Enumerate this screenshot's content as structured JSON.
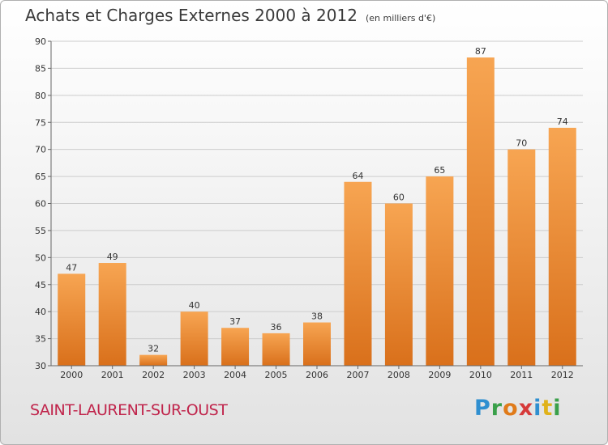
{
  "header": {
    "title": "Achats et Charges Externes 2000 à 2012",
    "unit": "(en milliers d'€)"
  },
  "footer": {
    "commune": "SAINT-LAURENT-SUR-OUST",
    "logo_text": "Proxiti",
    "logo_letters": [
      {
        "ch": "P",
        "color": "#2f8fd0"
      },
      {
        "ch": "r",
        "color": "#3aa04a"
      },
      {
        "ch": "o",
        "color": "#e07b1a"
      },
      {
        "ch": "x",
        "color": "#d63a3a"
      },
      {
        "ch": "i",
        "color": "#2f8fd0"
      },
      {
        "ch": "t",
        "color": "#e0b21a"
      },
      {
        "ch": "i",
        "color": "#3aa04a"
      }
    ]
  },
  "colors": {
    "bar_light": "#f7a552",
    "bar_dark": "#d9701b",
    "grid": "#cccccc",
    "commune": "#c0244b"
  },
  "chart_data": {
    "type": "bar",
    "title": "Achats et Charges Externes 2000 à 2012",
    "subtitle": "(en milliers d'€)",
    "categories": [
      "2000",
      "2001",
      "2002",
      "2003",
      "2004",
      "2005",
      "2006",
      "2007",
      "2008",
      "2009",
      "2010",
      "2011",
      "2012"
    ],
    "values": [
      47,
      49,
      32,
      40,
      37,
      36,
      38,
      64,
      60,
      65,
      87,
      70,
      74
    ],
    "ylim": [
      30,
      90
    ],
    "yticks": [
      30,
      35,
      40,
      45,
      50,
      55,
      60,
      65,
      70,
      75,
      80,
      85,
      90
    ],
    "grid": true,
    "xlabel": "",
    "ylabel": ""
  }
}
